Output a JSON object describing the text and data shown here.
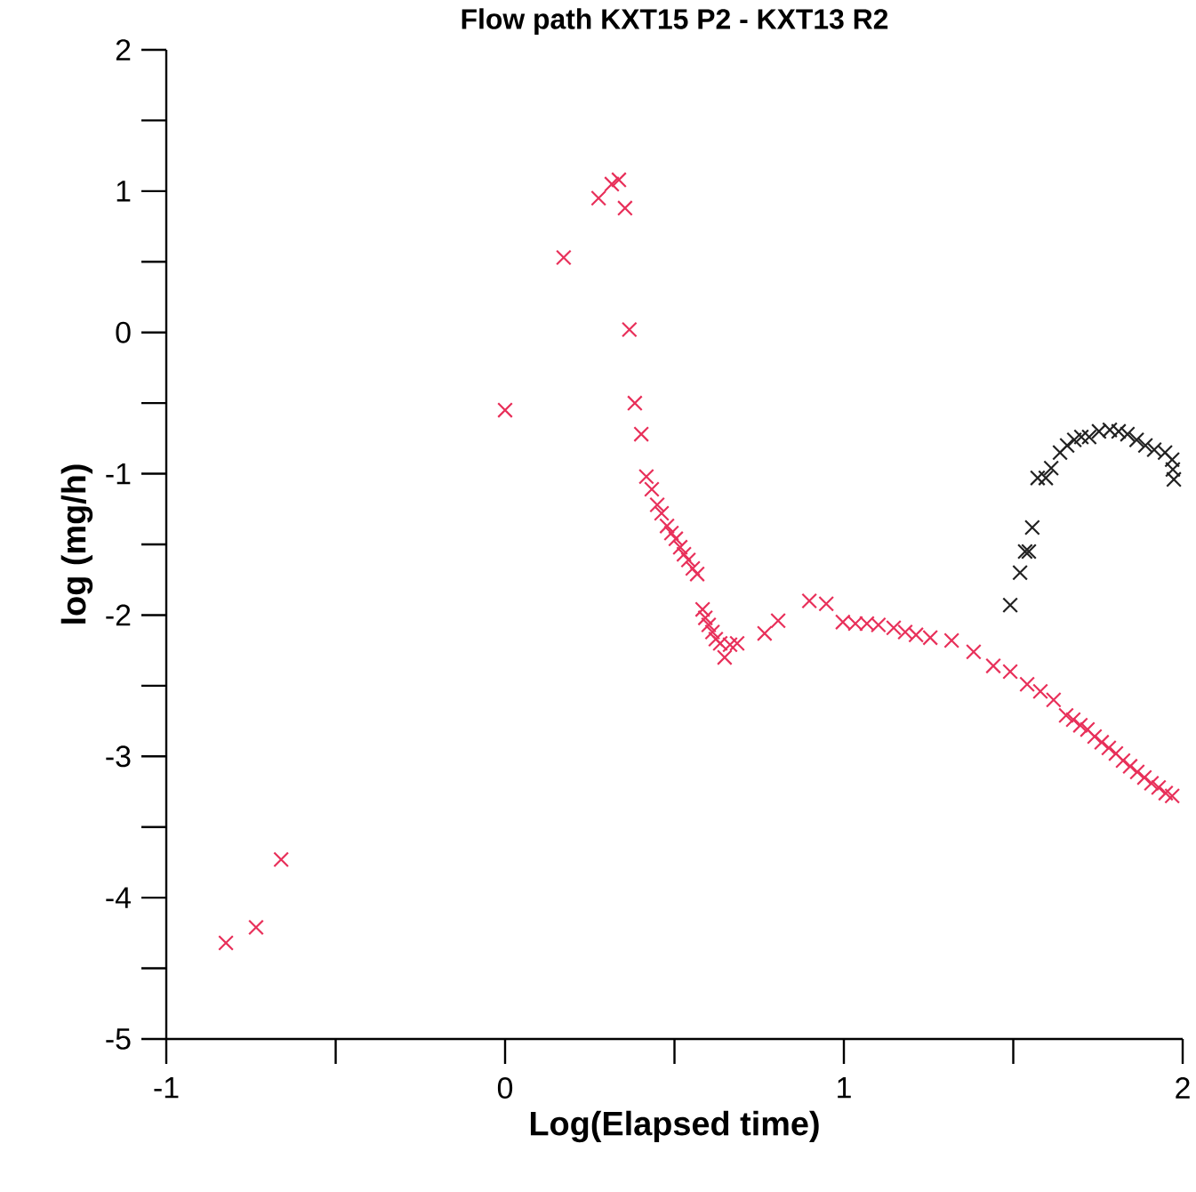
{
  "chart_data": {
    "type": "scatter",
    "title": "Flow path KXT15 P2 - KXT13 R2",
    "xlabel": "Log(Elapsed time)",
    "ylabel": "log (mg/h)",
    "xlim": [
      -1,
      2
    ],
    "ylim": [
      -5,
      2
    ],
    "xticks": [
      -1,
      0,
      1,
      2
    ],
    "yticks": [
      -5,
      -4,
      -3,
      -2,
      -1,
      0,
      1,
      2
    ],
    "marker": "cross",
    "series": [
      {
        "color": "#e8305a",
        "x": [
          -0.824,
          -0.735,
          -0.661,
          0.0,
          0.173,
          0.276,
          0.315,
          0.336,
          0.354,
          0.367,
          0.383,
          0.402,
          0.417,
          0.433,
          0.449,
          0.462,
          0.478,
          0.491,
          0.504,
          0.517,
          0.528,
          0.541,
          0.554,
          0.567,
          0.583,
          0.591,
          0.601,
          0.612,
          0.622,
          0.635,
          0.648,
          0.664,
          0.685,
          0.766,
          0.806,
          0.898,
          0.948,
          0.997,
          1.034,
          1.068,
          1.102,
          1.147,
          1.181,
          1.213,
          1.255,
          1.318,
          1.383,
          1.441,
          1.491,
          1.541,
          1.58,
          1.619,
          1.656,
          1.677,
          1.698,
          1.719,
          1.74,
          1.761,
          1.782,
          1.803,
          1.824,
          1.845,
          1.866,
          1.887,
          1.908,
          1.929,
          1.95,
          1.969
        ],
        "values": [
          -4.32,
          -4.21,
          -3.73,
          -0.55,
          0.53,
          0.95,
          1.05,
          1.08,
          0.88,
          0.02,
          -0.5,
          -0.72,
          -1.02,
          -1.11,
          -1.22,
          -1.28,
          -1.37,
          -1.42,
          -1.46,
          -1.52,
          -1.57,
          -1.61,
          -1.67,
          -1.71,
          -1.96,
          -2.02,
          -2.07,
          -2.12,
          -2.17,
          -2.2,
          -2.3,
          -2.21,
          -2.2,
          -2.13,
          -2.04,
          -1.9,
          -1.92,
          -2.05,
          -2.06,
          -2.06,
          -2.07,
          -2.09,
          -2.12,
          -2.14,
          -2.16,
          -2.18,
          -2.26,
          -2.36,
          -2.4,
          -2.49,
          -2.54,
          -2.6,
          -2.71,
          -2.74,
          -2.78,
          -2.81,
          -2.86,
          -2.9,
          -2.94,
          -2.98,
          -3.03,
          -3.07,
          -3.11,
          -3.15,
          -3.19,
          -3.22,
          -3.26,
          -3.28
        ]
      },
      {
        "color": "#222222",
        "x": [
          1.491,
          1.52,
          1.535,
          1.546,
          1.556,
          1.572,
          1.596,
          1.612,
          1.638,
          1.659,
          1.68,
          1.701,
          1.724,
          1.753,
          1.785,
          1.811,
          1.837,
          1.864,
          1.89,
          1.916,
          1.948,
          1.969,
          1.971,
          1.974
        ],
        "values": [
          -1.93,
          -1.7,
          -1.55,
          -1.55,
          -1.38,
          -1.03,
          -1.03,
          -0.96,
          -0.85,
          -0.8,
          -0.76,
          -0.74,
          -0.74,
          -0.7,
          -0.69,
          -0.7,
          -0.72,
          -0.76,
          -0.8,
          -0.83,
          -0.85,
          -0.9,
          -0.97,
          -1.04
        ]
      }
    ]
  }
}
